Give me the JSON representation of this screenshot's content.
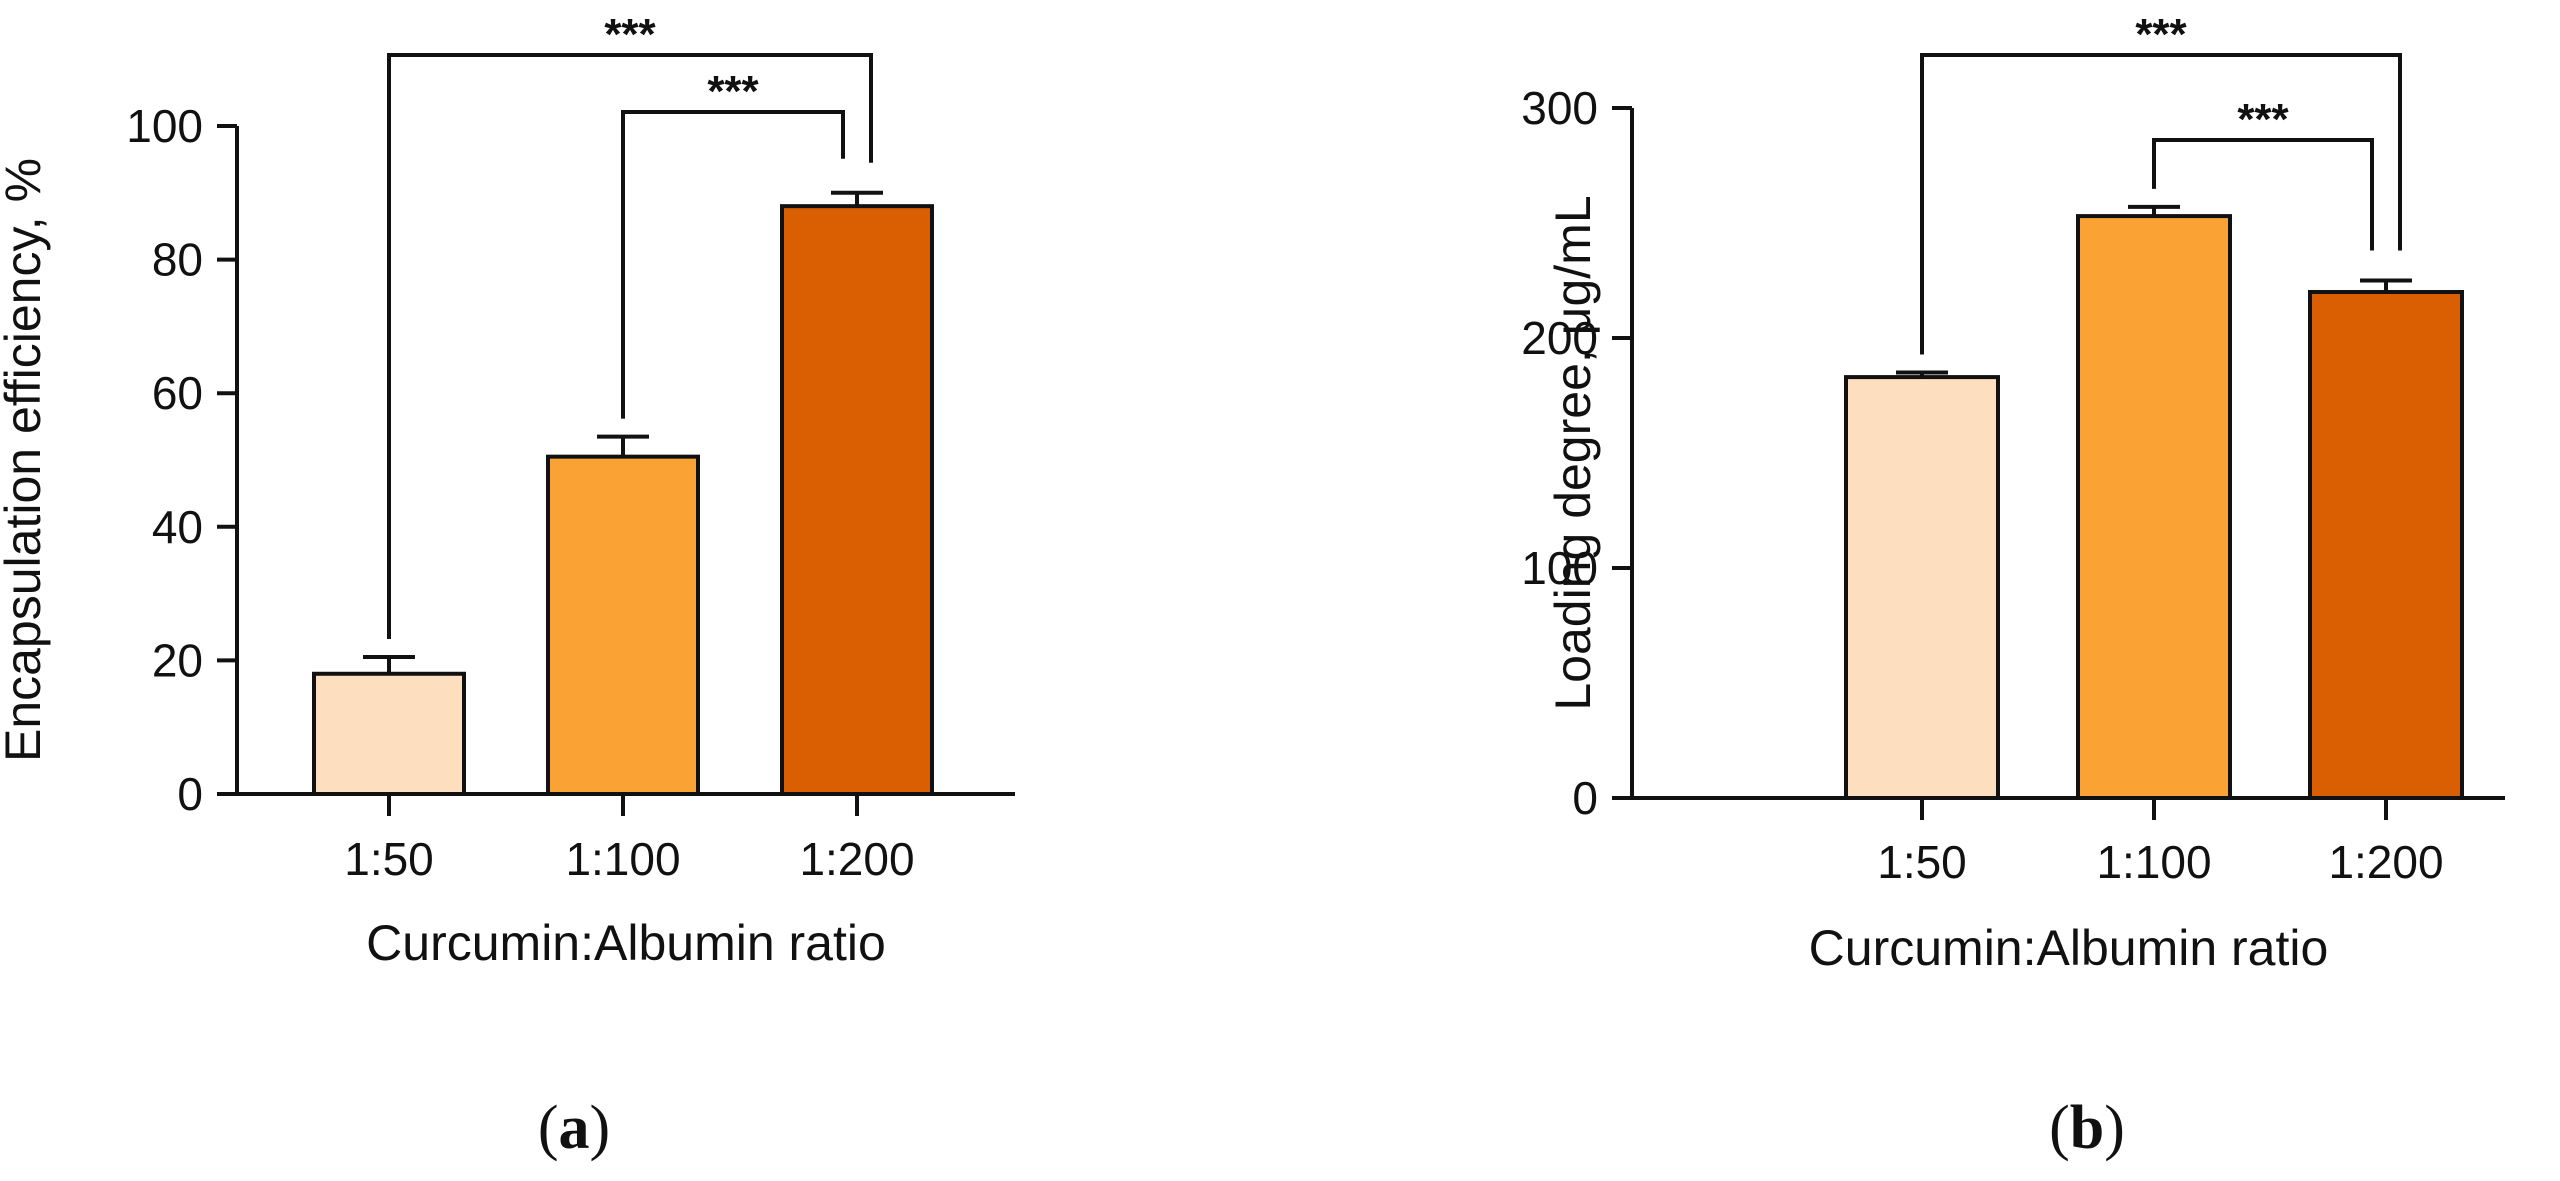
{
  "figure": {
    "panels": [
      {
        "label_open": "(",
        "label_letter": "a",
        "label_close": ")"
      },
      {
        "label_open": "(",
        "label_letter": "b",
        "label_close": ")"
      }
    ]
  },
  "chart_data": [
    {
      "type": "bar",
      "panel": "a",
      "title": "",
      "xlabel": "Curcumin:Albumin ratio",
      "ylabel": "Encapsulation efficiency, %",
      "categories": [
        "1:50",
        "1:100",
        "1:200"
      ],
      "values": [
        18,
        50.5,
        88
      ],
      "errors": [
        2.5,
        3,
        2
      ],
      "colors": [
        "#FDDFBF",
        "#FBA235",
        "#D95F02"
      ],
      "ylim": [
        0,
        100
      ],
      "yticks": [
        0,
        20,
        40,
        60,
        80,
        100
      ],
      "grid": false,
      "legend": "none",
      "significance": [
        {
          "from": 0,
          "to": 2,
          "label": "***"
        },
        {
          "from": 1,
          "to": 2,
          "label": "***"
        }
      ]
    },
    {
      "type": "bar",
      "panel": "b",
      "title": "",
      "xlabel": "Curcumin:Albumin ratio",
      "ylabel": "Loading degree, μg/mL",
      "categories": [
        "1:50",
        "1:100",
        "1:200"
      ],
      "values": [
        183,
        253,
        220
      ],
      "errors": [
        2,
        4,
        5
      ],
      "colors": [
        "#FDDFBF",
        "#FBA235",
        "#D95F02"
      ],
      "ylim": [
        0,
        300
      ],
      "yticks": [
        0,
        100,
        200,
        300
      ],
      "grid": false,
      "legend": "none",
      "significance": [
        {
          "from": 0,
          "to": 2,
          "label": "***"
        },
        {
          "from": 1,
          "to": 2,
          "label": "***"
        }
      ]
    }
  ]
}
